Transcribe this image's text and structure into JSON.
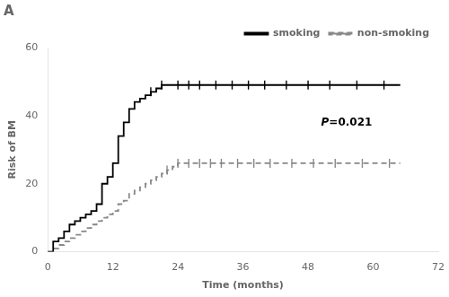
{
  "chart_data": {
    "type": "line",
    "title": "A",
    "xlabel": "Time (months)",
    "ylabel": "Risk of BM",
    "annotation": "P=0.021",
    "xlim": [
      0,
      72
    ],
    "xticks": [
      0,
      12,
      24,
      36,
      48,
      60,
      72
    ],
    "ylim": [
      0,
      60
    ],
    "yticks": [
      0,
      20,
      40,
      60
    ],
    "grid": false,
    "legend": "upper right",
    "series": [
      {
        "name": "smoking",
        "color": "#000000",
        "line_style": "solid",
        "x": [
          0,
          1,
          2,
          3,
          4,
          5,
          6,
          7,
          8,
          9,
          10,
          11,
          12,
          13,
          14,
          15,
          16,
          17,
          18,
          19,
          20,
          21,
          22,
          23,
          24,
          65
        ],
        "values": [
          0,
          3,
          4,
          6,
          8,
          9,
          10,
          11,
          12,
          14,
          20,
          22,
          26,
          34,
          38,
          42,
          44,
          45,
          46,
          47,
          48,
          49,
          49,
          49,
          49,
          49
        ],
        "censor_x": [
          19,
          21,
          24,
          26,
          28,
          31,
          34,
          37,
          40,
          44,
          48,
          52,
          57,
          62
        ],
        "censor_y": [
          47,
          49,
          49,
          49,
          49,
          49,
          49,
          49,
          49,
          49,
          49,
          49,
          49,
          49
        ]
      },
      {
        "name": "non-smoking",
        "color": "#888888",
        "line_style": "dashed",
        "x": [
          0,
          1,
          2,
          3,
          4,
          5,
          6,
          7,
          8,
          9,
          10,
          11,
          12,
          13,
          14,
          15,
          16,
          17,
          18,
          19,
          20,
          21,
          22,
          23,
          24,
          25,
          26,
          65
        ],
        "values": [
          0,
          1,
          2,
          3,
          4,
          5,
          6,
          7,
          8,
          9,
          10,
          11,
          12,
          14,
          15,
          17,
          18,
          19,
          20,
          21,
          22,
          23,
          24,
          25,
          26,
          26,
          26,
          26
        ],
        "censor_x": [
          22,
          24,
          26,
          28,
          30,
          32,
          35,
          38,
          41,
          45,
          49,
          53,
          58,
          63
        ],
        "censor_y": [
          24,
          26,
          26,
          26,
          26,
          26,
          26,
          26,
          26,
          26,
          26,
          26,
          26,
          26
        ]
      }
    ]
  }
}
